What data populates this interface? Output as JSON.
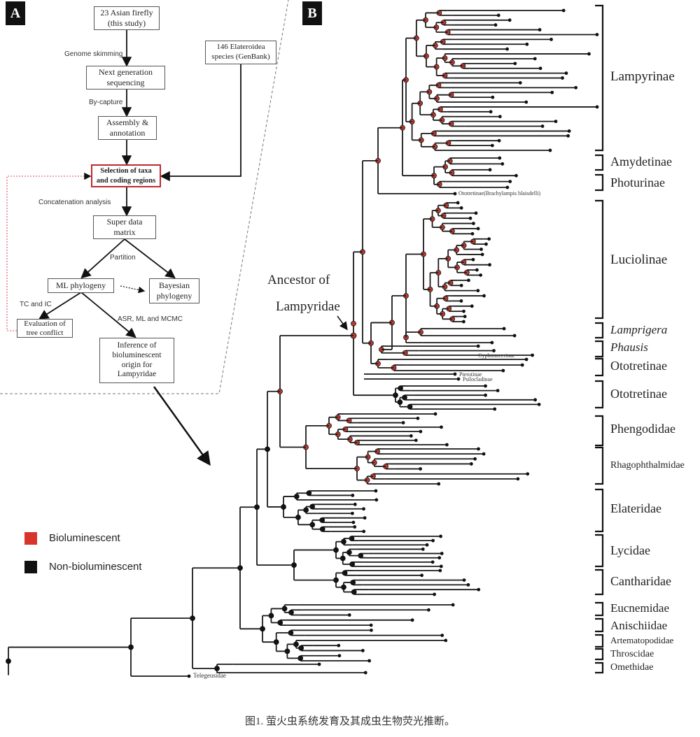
{
  "colors": {
    "bioluminescent": "#b83a32",
    "non_bioluminescent": "#111111",
    "highlight_box": "#c0282d",
    "dotted_loop": "#e0707a"
  },
  "panel_a": {
    "label": "A",
    "boxes": {
      "asian": "23 Asian firefly\n(this study)",
      "genbank": "146 Elateroidea\nspecies (GenBank)",
      "ngs": "Next generation\nsequencing",
      "assembly": "Assembly &\nannotation",
      "selection": "Selection of taxa\nand coding regions",
      "matrix": "Super data\nmatrix",
      "ml": "ML phylogeny",
      "bayes": "Bayesian\nphylogeny",
      "eval": "Evaluation of\ntree conflict",
      "inference": "Inference of\nbioluminescent\norigin for\nLampyridae"
    },
    "edge_labels": {
      "genome": "Genome skimming",
      "capture": "By-capture",
      "concat": "Concatenation analysis",
      "partition": "Partition",
      "tcic": "TC and IC",
      "asr": "ASR, ML and MCMC"
    }
  },
  "legend": {
    "items": [
      {
        "label": "Bioluminescent",
        "color": "#d9342b"
      },
      {
        "label": "Non-bioluminescent",
        "color": "#111111"
      }
    ]
  },
  "panel_b": {
    "label": "B",
    "ancestor_line1": "Ancestor of",
    "ancestor_line2": "Lampyridae",
    "clades": [
      "Lampyrinae",
      "Amydetinae",
      "Photurinae",
      "Luciolinae",
      "Lamprigera",
      "Phausis",
      "Ototretinae",
      "Ototretinae",
      "Phengodidae",
      "Rhagophthalmidae",
      "Elateridae",
      "Lycidae",
      "Cantharidae",
      "Eucnemidae",
      "Anischiidae",
      "Artematopodidae",
      "Throscidae",
      "Omethidae"
    ],
    "tip_labels": {
      "brachylampis": "Ototretinae(Brachylampis blaisdelli)",
      "cyphonocerinae": "Cyphonocerinae",
      "pterotinae": "Pterotinae",
      "psilocladinae": "Psilocladinae",
      "telegeusidae": "Telegeusidae"
    }
  },
  "caption": "图1. 萤火虫系统发育及其成虫生物荧光推断。"
}
